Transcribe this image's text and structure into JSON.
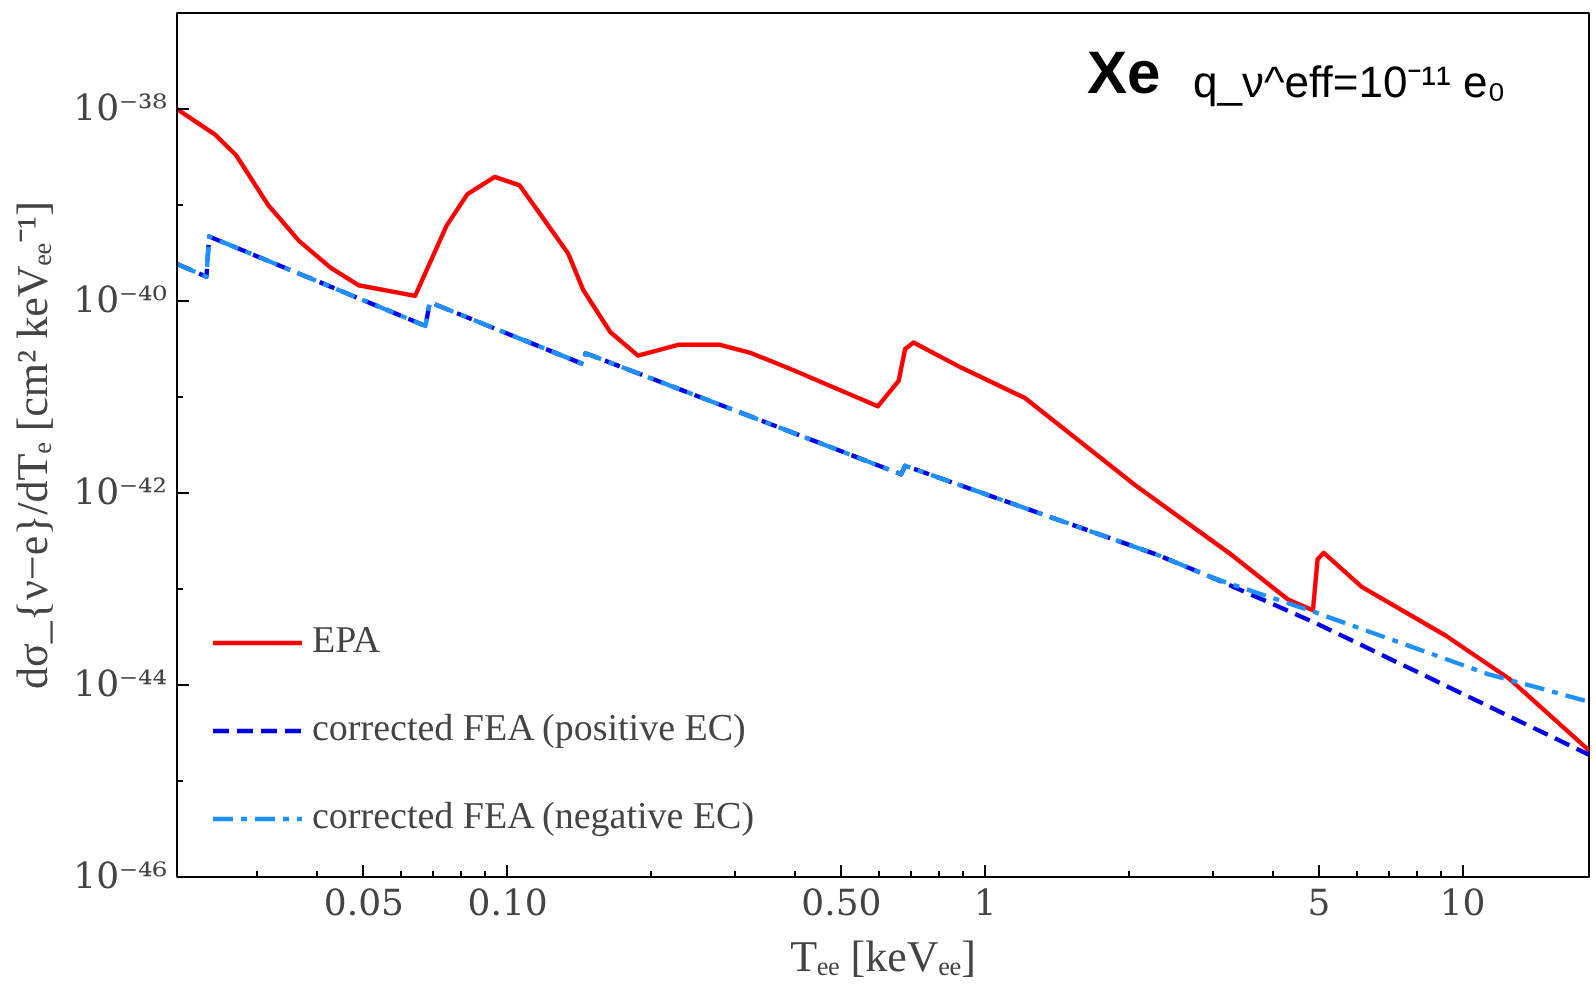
{
  "chart_data": {
    "type": "line",
    "xlabel": "Tₑₑ [keVₑₑ]",
    "ylabel": "dσ_{ν−e}/dTₑ [cm² keVₑₑ⁻¹]",
    "annotations": [
      "Xe",
      "q_ν^eff=10⁻¹¹ e₀"
    ],
    "log": "xy",
    "grid": false,
    "legend": "bottom left",
    "xlim": [
      0.0203,
      18.4
    ],
    "ylim": [
      1e-46,
      1e-37
    ],
    "xticks": [
      {
        "value": 0.03,
        "label": null
      },
      {
        "value": 0.04,
        "label": null
      },
      0.05,
      {
        "value": 0.06,
        "label": null
      },
      {
        "value": 0.07,
        "label": null
      },
      {
        "value": 0.08,
        "label": null
      },
      {
        "value": 0.09,
        "label": null
      },
      {
        "value": 0.1,
        "label": "0.10"
      },
      {
        "value": 0.2,
        "label": null
      },
      {
        "value": 0.3,
        "label": null
      },
      {
        "value": 0.4,
        "label": null
      },
      {
        "value": 0.5,
        "label": "0.50"
      },
      {
        "value": 0.6,
        "label": null
      },
      {
        "value": 0.7,
        "label": null
      },
      {
        "value": 0.8,
        "label": null
      },
      {
        "value": 0.9,
        "label": null
      },
      1,
      {
        "value": 2,
        "label": null
      },
      {
        "value": 3,
        "label": null
      },
      {
        "value": 4,
        "label": null
      },
      5,
      {
        "value": 6,
        "label": null
      },
      {
        "value": 7,
        "label": null
      },
      {
        "value": 8,
        "label": null
      },
      {
        "value": 9,
        "label": null
      },
      10
    ],
    "yticks": [
      {
        "value": 1e-46,
        "label": "10⁻⁴⁶"
      },
      {
        "value": 1e-45,
        "label": null
      },
      {
        "value": 1e-44,
        "label": "10⁻⁴⁴"
      },
      {
        "value": 1e-43,
        "label": null
      },
      {
        "value": 1e-42,
        "label": "10⁻⁴²"
      },
      {
        "value": 1e-41,
        "label": null
      },
      {
        "value": 1e-40,
        "label": "10⁻⁴⁰"
      },
      {
        "value": 1e-39,
        "label": null
      },
      {
        "value": 1e-38,
        "label": "10⁻³⁸"
      }
    ],
    "series": [
      {
        "name": "EPA",
        "color": "#ff0000",
        "line_style": "solid",
        "x": [
          0.0203,
          0.0244,
          0.027,
          0.0315,
          0.0366,
          0.0427,
          0.0487,
          0.064,
          0.0745,
          0.0824,
          0.094,
          0.106,
          0.1175,
          0.134,
          0.144,
          0.164,
          0.1875,
          0.2275,
          0.2786,
          0.324,
          0.397,
          0.596,
          0.659,
          0.68,
          0.708,
          0.895,
          1.21,
          2.06,
          3.24,
          4.31,
          4.86,
          4.97,
          5.12,
          6.15,
          9.23,
          12.5,
          18.4
        ],
        "values": [
          1e-38,
          5.4e-39,
          3.3e-39,
          1e-39,
          4.2e-40,
          2.2e-40,
          1.46e-40,
          1.13e-40,
          6.1e-40,
          1.3e-39,
          1.96e-39,
          1.6e-39,
          7.8e-40,
          3.1e-40,
          1.3e-40,
          4.75e-41,
          2.7e-41,
          3.5e-41,
          3.5e-41,
          2.86e-41,
          1.9e-41,
          8e-42,
          1.47e-41,
          3.16e-41,
          3.7e-41,
          2e-41,
          9.8e-42,
          1.21e-42,
          2.38e-43,
          7.76e-44,
          6e-44,
          2.04e-43,
          2.38e-43,
          1.05e-43,
          3.26e-44,
          1.17e-44,
          2.08e-45
        ]
      },
      {
        "name": "corrected FEA (positive EC)",
        "color": "#0000ee",
        "line_style": "dashed",
        "x": [
          0.0203,
          0.0234,
          0.0237,
          0.0673,
          0.0687,
          0.144,
          0.1456,
          0.667,
          0.68,
          2.3,
          3.02,
          4.92,
          18.4
        ],
        "values": [
          2.43e-40,
          1.79e-40,
          4.7e-40,
          5.5e-41,
          9.7e-41,
          2.2e-41,
          2.86e-41,
          1.57e-42,
          1.92e-42,
          2.26e-43,
          1.29e-43,
          4.43e-44,
          1.88e-45
        ]
      },
      {
        "name": "corrected FEA (negative EC)",
        "color": "#1e90ff",
        "line_style": "dashdot",
        "x": [
          0.0203,
          0.0234,
          0.0237,
          0.0673,
          0.0687,
          0.144,
          0.1456,
          0.667,
          0.68,
          2.3,
          3.02,
          4.92,
          11.3,
          18.4
        ],
        "values": [
          2.43e-40,
          1.79e-40,
          4.7e-40,
          5.5e-41,
          9.7e-41,
          2.2e-41,
          2.86e-41,
          1.57e-42,
          1.92e-42,
          2.26e-43,
          1.29e-43,
          5.7e-44,
          1.3e-44,
          6.7e-45
        ]
      }
    ]
  }
}
